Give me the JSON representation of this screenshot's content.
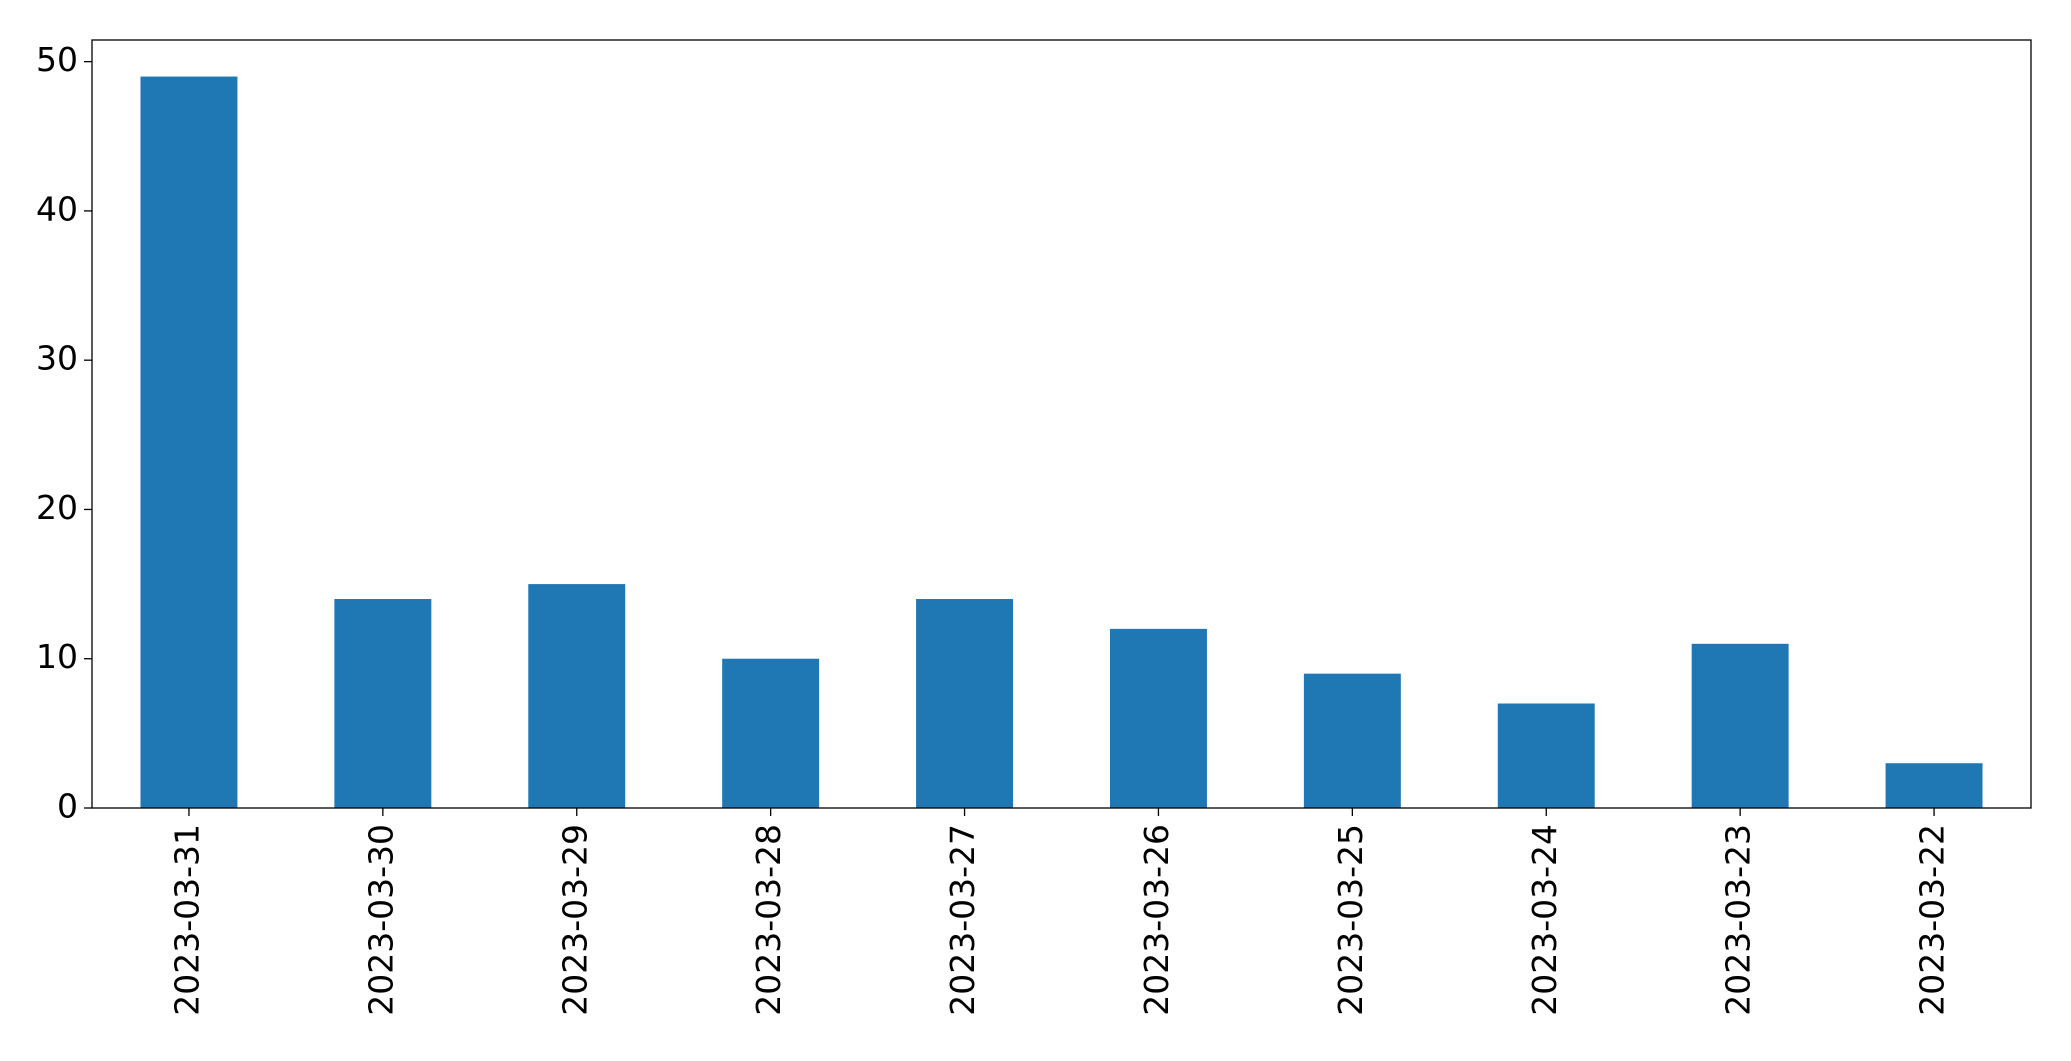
{
  "chart_data": {
    "type": "bar",
    "categories": [
      "2023-03-31",
      "2023-03-30",
      "2023-03-29",
      "2023-03-28",
      "2023-03-27",
      "2023-03-26",
      "2023-03-25",
      "2023-03-24",
      "2023-03-23",
      "2023-03-22"
    ],
    "values": [
      49,
      14,
      15,
      10,
      14,
      12,
      9,
      7,
      11,
      3
    ],
    "color": "#1f77b4",
    "ylim": [
      0,
      51.45
    ],
    "yticks": [
      0,
      10,
      20,
      30,
      40,
      50
    ],
    "grid": false
  }
}
